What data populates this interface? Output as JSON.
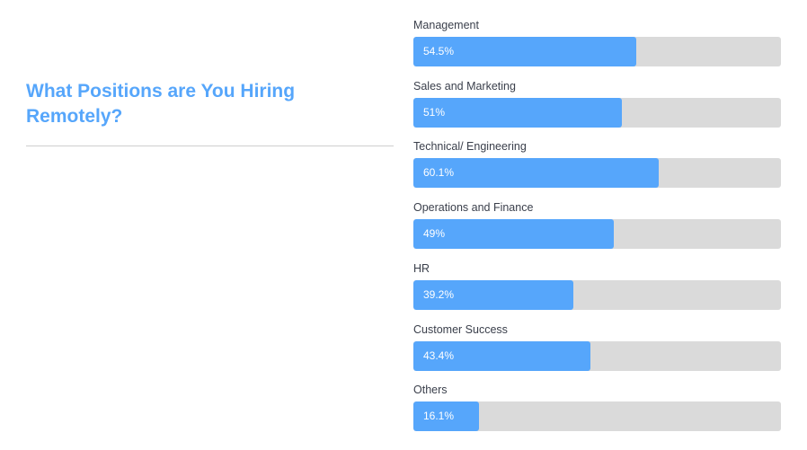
{
  "title": "What Positions are You Hiring Remotely?",
  "colors": {
    "accent": "#56a6fb",
    "track": "#dadada",
    "title": "#56a6fb",
    "label": "#3a3f4b"
  },
  "chart_data": {
    "type": "bar",
    "orientation": "horizontal",
    "title": "What Positions are You Hiring Remotely?",
    "categories": [
      "Management",
      "Sales and Marketing",
      "Technical/ Engineering",
      "Operations and Finance",
      "HR",
      "Customer Success",
      "Others"
    ],
    "values": [
      54.5,
      51,
      60.1,
      49,
      39.2,
      43.4,
      16.1
    ],
    "value_labels": [
      "54.5%",
      "51%",
      "60.1%",
      "49%",
      "39.2%",
      "43.4%",
      "16.1%"
    ],
    "xlim": [
      0,
      90
    ],
    "unit": "%",
    "grid": false,
    "legend": "none"
  }
}
